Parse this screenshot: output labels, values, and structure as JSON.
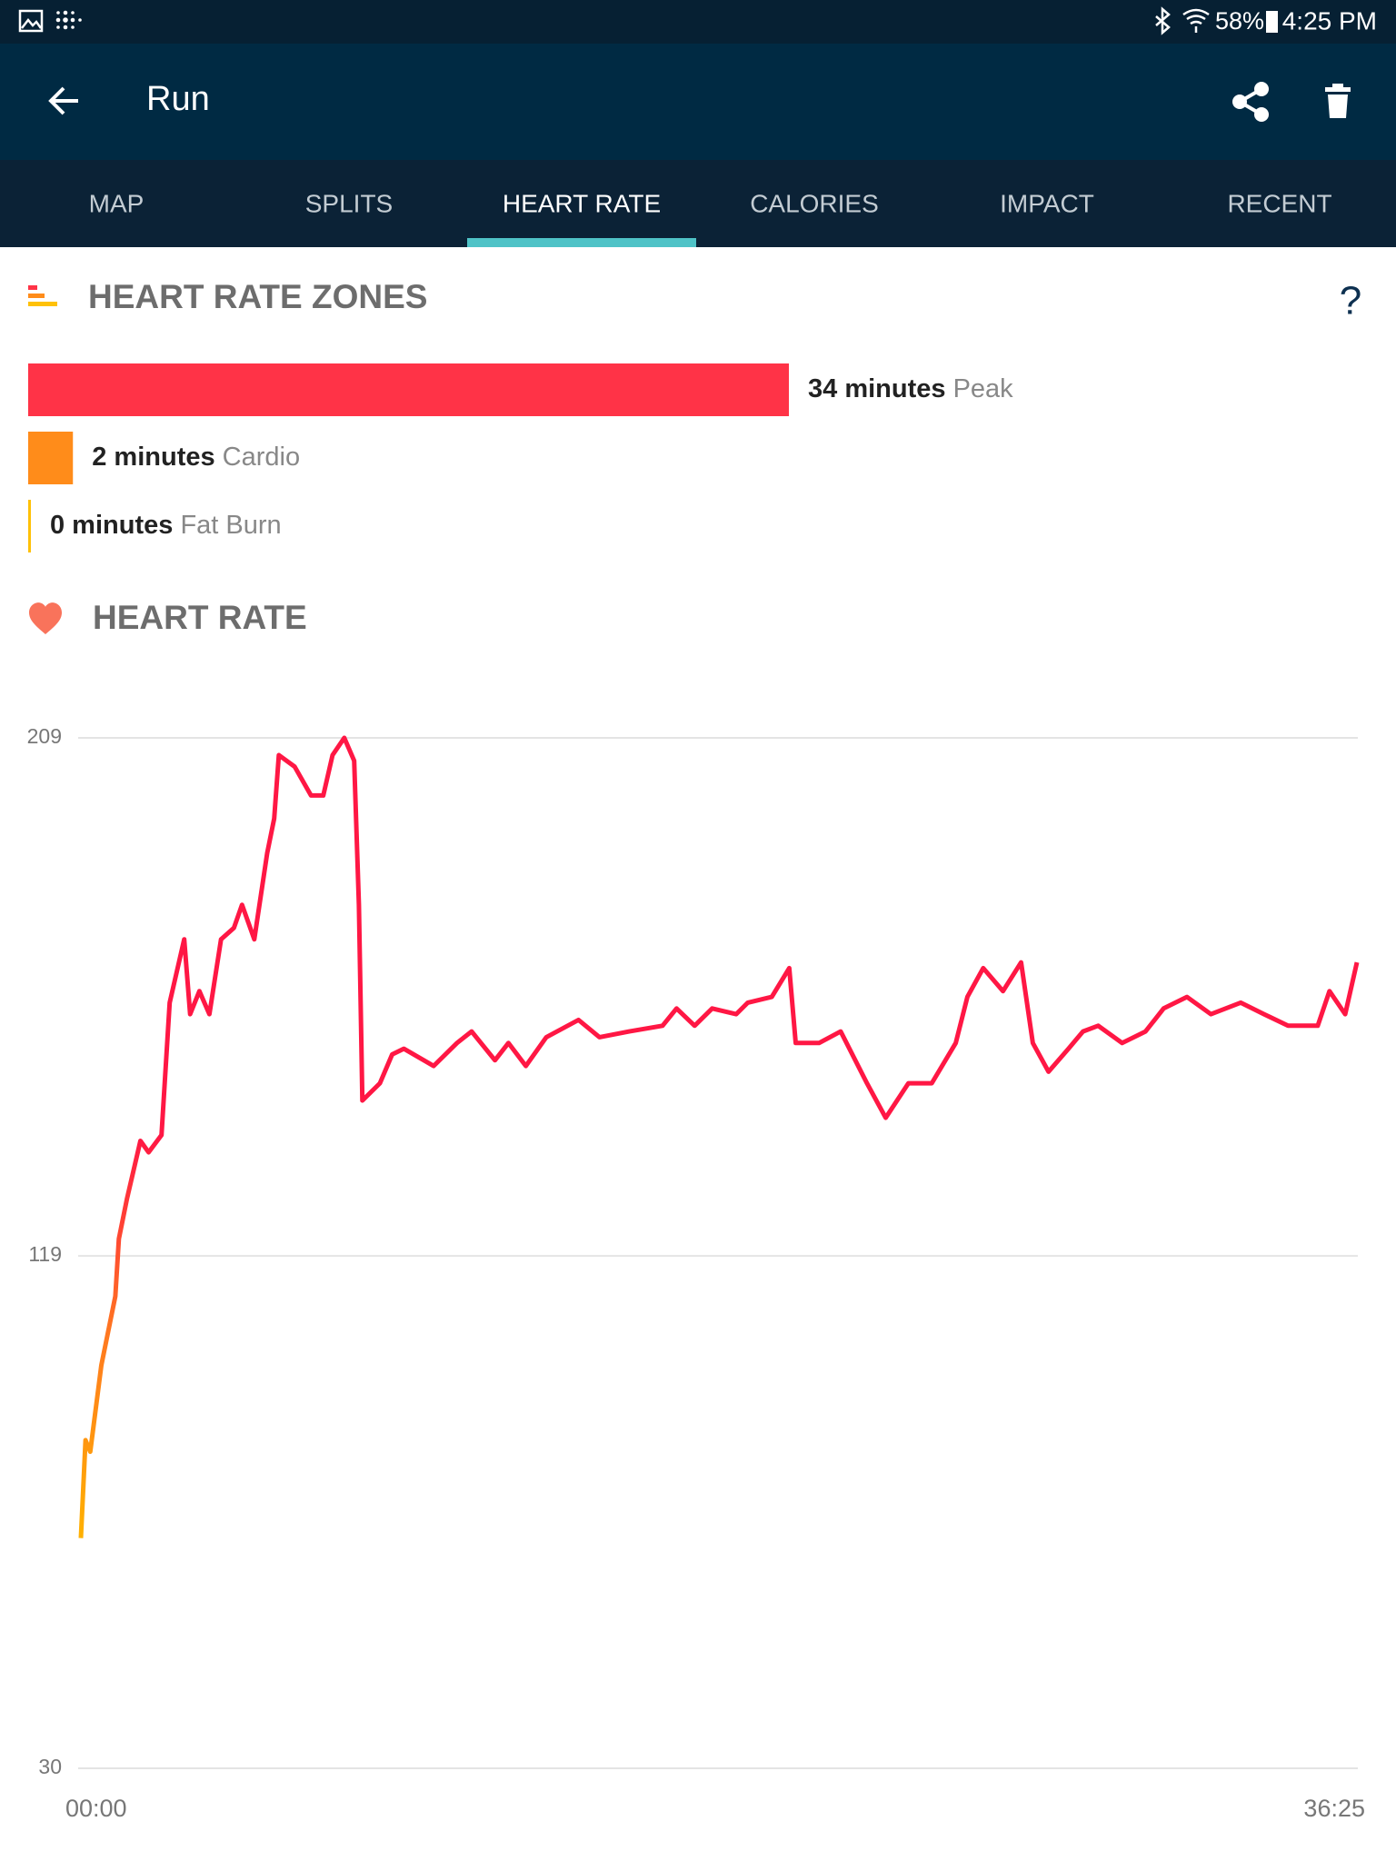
{
  "status_bar": {
    "battery": "58%",
    "time": "4:25 PM"
  },
  "app_bar": {
    "title": "Run"
  },
  "tabs": [
    "MAP",
    "SPLITS",
    "HEART RATE",
    "CALORIES",
    "IMPACT",
    "RECENT"
  ],
  "active_tab": 2,
  "zones": {
    "title": "HEART RATE ZONES",
    "help": "?",
    "items": [
      {
        "value": 34,
        "value_label": "34 minutes",
        "name": "Peak",
        "color": "#ff3347"
      },
      {
        "value": 2,
        "value_label": "2 minutes",
        "name": "Cardio",
        "color": "#ff8c1a"
      },
      {
        "value": 0,
        "value_label": "0 minutes",
        "name": "Fat Burn",
        "color": "#ffc107"
      }
    ]
  },
  "chart_data": {
    "type": "line",
    "title": "HEART RATE",
    "x": [
      0,
      8,
      16,
      35,
      59,
      65,
      79,
      102,
      116,
      138,
      152,
      177,
      187,
      203,
      220,
      240,
      262,
      276,
      297,
      319,
      331,
      339,
      366,
      394,
      415,
      431,
      451,
      468,
      476,
      482,
      512,
      533,
      553,
      604,
      644,
      669,
      709,
      732,
      762,
      797,
      852,
      888,
      939,
      996,
      1020,
      1051,
      1081,
      1122,
      1142,
      1183,
      1213,
      1224,
      1264,
      1301,
      1346,
      1378,
      1417,
      1457,
      1498,
      1518,
      1545,
      1579,
      1610,
      1630,
      1657,
      1691,
      1716,
      1742,
      1783,
      1823,
      1854,
      1894,
      1935,
      1986,
      2026,
      2067,
      2118,
      2138,
      2165,
      2185
    ],
    "series": [
      {
        "color": "#ff1744",
        "values": [
          70,
          87,
          85,
          100,
          112,
          122,
          129,
          139,
          137,
          140,
          163,
          174,
          161,
          165,
          161,
          174,
          176,
          180,
          174,
          189,
          195,
          206,
          204,
          199,
          199,
          206,
          209,
          205,
          180,
          146,
          149,
          154,
          155,
          152,
          156,
          158,
          153,
          156,
          152,
          157,
          160,
          157,
          158,
          159,
          162,
          159,
          162,
          161,
          163,
          164,
          169,
          156,
          156,
          158,
          149,
          143,
          149,
          149,
          156,
          164,
          169,
          165,
          170,
          156,
          151,
          155,
          158,
          159,
          156,
          158,
          162,
          164,
          161,
          163,
          161,
          159,
          159,
          165,
          161,
          170
        ]
      }
    ],
    "xlim": [
      0,
      2185
    ],
    "xticks": [
      {
        "value": 0,
        "label": "00:00"
      },
      {
        "value": 2185,
        "label": "36:25"
      }
    ],
    "ylim": [
      30,
      209
    ],
    "yticks": [
      30,
      119,
      209
    ],
    "grid": true
  }
}
